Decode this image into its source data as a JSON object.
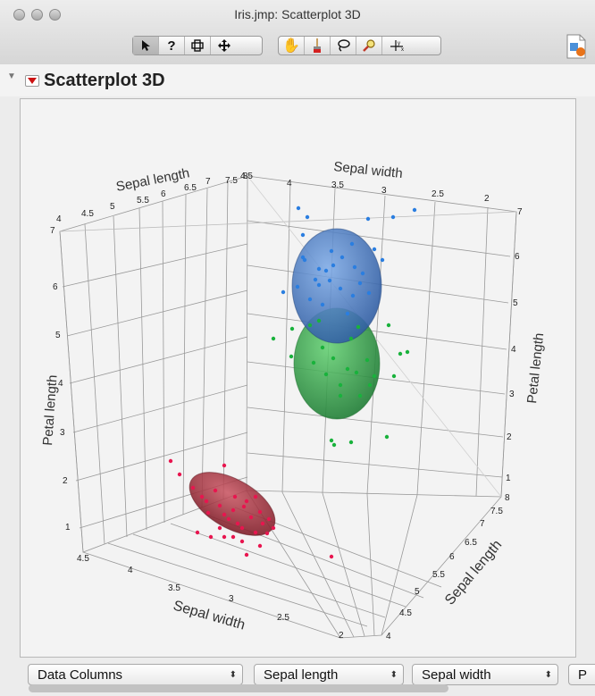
{
  "window": {
    "title": "Iris.jmp: Scatterplot 3D"
  },
  "report": {
    "title": "Scatterplot 3D"
  },
  "selectors": [
    {
      "label": "Data Columns"
    },
    {
      "label": "Sepal length"
    },
    {
      "label": "Sepal width"
    },
    {
      "label": "P"
    }
  ],
  "chart_data": {
    "type": "scatter",
    "axes": {
      "left_top": {
        "label": "Sepal length",
        "ticks": [
          "4",
          "4.5",
          "5",
          "5.5",
          "6",
          "6.5",
          "7",
          "7.5",
          "8"
        ]
      },
      "right_top": {
        "label": "Sepal width",
        "ticks": [
          "4.5",
          "4",
          "3.5",
          "3",
          "2.5",
          "2"
        ]
      },
      "left_vertical": {
        "label": "Petal length",
        "ticks": [
          "7",
          "6",
          "5",
          "4",
          "3",
          "2",
          "1"
        ]
      },
      "right_vertical": {
        "label": "Petal length",
        "ticks": [
          "7",
          "6",
          "5",
          "4",
          "3",
          "2",
          "1"
        ]
      },
      "bottom_left": {
        "label": "Sepal width",
        "ticks": [
          "4.5",
          "4",
          "3.5",
          "3",
          "2.5",
          "2"
        ]
      },
      "bottom_right": {
        "label": "Sepal length",
        "ticks": [
          "8",
          "7.5",
          "7",
          "6.5",
          "6",
          "5.5",
          "5",
          "4.5",
          "4"
        ]
      }
    },
    "series": [
      {
        "color": "#e8154f",
        "ellipse_color": "#9e2a34",
        "points": [
          [
            190,
            515
          ],
          [
            200,
            530
          ],
          [
            215,
            545
          ],
          [
            225,
            555
          ],
          [
            230,
            560
          ],
          [
            240,
            548
          ],
          [
            245,
            565
          ],
          [
            250,
            575
          ],
          [
            255,
            580
          ],
          [
            260,
            570
          ],
          [
            265,
            585
          ],
          [
            270,
            590
          ],
          [
            275,
            560
          ],
          [
            280,
            578
          ],
          [
            285,
            595
          ],
          [
            290,
            572
          ],
          [
            293,
            585
          ],
          [
            300,
            580
          ],
          [
            305,
            590
          ],
          [
            220,
            595
          ],
          [
            235,
            600
          ],
          [
            250,
            600
          ],
          [
            270,
            605
          ],
          [
            275,
            620
          ],
          [
            290,
            610
          ],
          [
            370,
            622
          ],
          [
            250,
            520
          ],
          [
            262,
            555
          ],
          [
            232,
            573
          ],
          [
            285,
            555
          ],
          [
            260,
            600
          ],
          [
            245,
            590
          ],
          [
            272,
            566
          ],
          [
            298,
            596
          ]
        ]
      },
      {
        "color": "#2a7ee0",
        "ellipse_color": "#3f6fb4",
        "points": [
          [
            333,
            232
          ],
          [
            343,
            242
          ],
          [
            411,
            244
          ],
          [
            418,
            278
          ],
          [
            439,
            242
          ],
          [
            463,
            234
          ],
          [
            393,
            272
          ],
          [
            338,
            287
          ],
          [
            356,
            300
          ],
          [
            364,
            302
          ],
          [
            372,
            296
          ],
          [
            380,
            322
          ],
          [
            394,
            330
          ],
          [
            402,
            316
          ],
          [
            412,
            327
          ],
          [
            356,
            318
          ],
          [
            346,
            334
          ],
          [
            316,
            326
          ],
          [
            338,
            262
          ],
          [
            427,
            290
          ],
          [
            388,
            350
          ],
          [
            352,
            312
          ],
          [
            368,
            313
          ],
          [
            396,
            298
          ],
          [
            340,
            290
          ],
          [
            370,
            280
          ],
          [
            405,
            305
          ],
          [
            360,
            340
          ],
          [
            382,
            287
          ],
          [
            332,
            320
          ]
        ]
      },
      {
        "color": "#19b23c",
        "ellipse_color": "#2f9a44",
        "points": [
          [
            305,
            378
          ],
          [
            326,
            367
          ],
          [
            346,
            363
          ],
          [
            360,
            388
          ],
          [
            372,
            400
          ],
          [
            388,
            412
          ],
          [
            398,
            416
          ],
          [
            410,
            402
          ],
          [
            418,
            420
          ],
          [
            440,
            420
          ],
          [
            447,
            395
          ],
          [
            455,
            393
          ],
          [
            434,
            363
          ],
          [
            325,
            398
          ],
          [
            370,
            492
          ],
          [
            373,
            497
          ],
          [
            392,
            494
          ],
          [
            432,
            488
          ],
          [
            413,
            430
          ],
          [
            380,
            430
          ],
          [
            350,
            405
          ],
          [
            364,
            418
          ],
          [
            400,
            365
          ],
          [
            392,
            378
          ],
          [
            356,
            358
          ],
          [
            380,
            442
          ],
          [
            402,
            442
          ]
        ]
      }
    ]
  }
}
